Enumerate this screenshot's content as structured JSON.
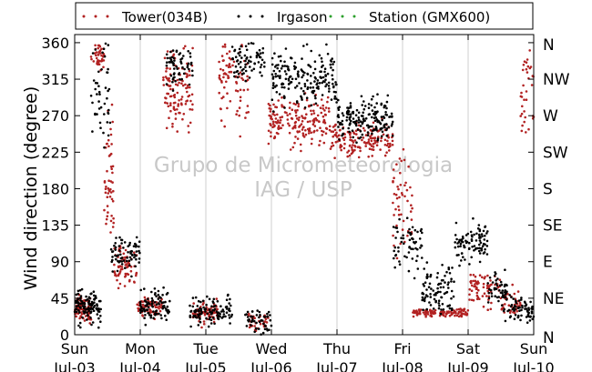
{
  "chart_data": {
    "type": "scatter",
    "ylabel": "Wind direction (degree)",
    "ylim": [
      0,
      370
    ],
    "yticks": [
      0,
      45,
      90,
      135,
      180,
      225,
      270,
      315,
      360
    ],
    "compass_labels": [
      "N",
      "NE",
      "E",
      "SE",
      "S",
      "SW",
      "W",
      "NW",
      "N"
    ],
    "xlim": [
      0,
      7
    ],
    "x_unit": "days since Sun Jul-03 00:00",
    "xticks": [
      {
        "day": "Sun",
        "date": "Jul-03"
      },
      {
        "day": "Mon",
        "date": "Jul-04"
      },
      {
        "day": "Tue",
        "date": "Jul-05"
      },
      {
        "day": "Wed",
        "date": "Jul-06"
      },
      {
        "day": "Thu",
        "date": "Jul-07"
      },
      {
        "day": "Fri",
        "date": "Jul-08"
      },
      {
        "day": "Sat",
        "date": "Jul-09"
      },
      {
        "day": "Sun",
        "date": "Jul-10"
      }
    ],
    "grid": "vertical",
    "legend_position": "top",
    "watermark": [
      "Grupo de Micrometeorologia",
      "IAG / USP"
    ],
    "series": [
      {
        "name": "Tower(034B)",
        "color": "#b22222",
        "clusters": [
          {
            "x0": 0.0,
            "x1": 0.25,
            "mean": 32,
            "spread": 14,
            "n": 90
          },
          {
            "x0": 0.25,
            "x1": 0.45,
            "mean": 345,
            "spread": 15,
            "n": 40
          },
          {
            "x0": 0.45,
            "x1": 0.6,
            "mean": 180,
            "spread": 70,
            "n": 50
          },
          {
            "x0": 0.6,
            "x1": 0.95,
            "mean": 85,
            "spread": 20,
            "n": 70
          },
          {
            "x0": 0.95,
            "x1": 1.35,
            "mean": 35,
            "spread": 12,
            "n": 70
          },
          {
            "x0": 1.35,
            "x1": 1.8,
            "mean": 300,
            "spread": 45,
            "n": 110
          },
          {
            "x0": 1.8,
            "x1": 2.2,
            "mean": 28,
            "spread": 12,
            "n": 70
          },
          {
            "x0": 2.2,
            "x1": 2.65,
            "mean": 310,
            "spread": 45,
            "n": 80
          },
          {
            "x0": 2.65,
            "x1": 2.95,
            "mean": 15,
            "spread": 10,
            "n": 40
          },
          {
            "x0": 2.95,
            "x1": 3.9,
            "mean": 265,
            "spread": 25,
            "n": 180
          },
          {
            "x0": 3.9,
            "x1": 4.85,
            "mean": 240,
            "spread": 18,
            "n": 160
          },
          {
            "x0": 4.85,
            "x1": 5.15,
            "mean": 160,
            "spread": 55,
            "n": 50
          },
          {
            "x0": 5.15,
            "x1": 6.0,
            "mean": 27,
            "spread": 4,
            "n": 110
          },
          {
            "x0": 6.0,
            "x1": 6.5,
            "mean": 55,
            "spread": 20,
            "n": 70
          },
          {
            "x0": 6.5,
            "x1": 6.8,
            "mean": 40,
            "spread": 15,
            "n": 40
          },
          {
            "x0": 6.8,
            "x1": 7.0,
            "mean": 300,
            "spread": 50,
            "n": 35
          }
        ]
      },
      {
        "name": "Irgason",
        "color": "#000000",
        "clusters": [
          {
            "x0": 0.0,
            "x1": 0.4,
            "mean": 35,
            "spread": 18,
            "n": 110
          },
          {
            "x0": 0.25,
            "x1": 0.55,
            "mean": 300,
            "spread": 55,
            "n": 45
          },
          {
            "x0": 0.55,
            "x1": 1.0,
            "mean": 100,
            "spread": 20,
            "n": 70
          },
          {
            "x0": 1.0,
            "x1": 1.45,
            "mean": 35,
            "spread": 15,
            "n": 90
          },
          {
            "x0": 1.4,
            "x1": 1.8,
            "mean": 330,
            "spread": 20,
            "n": 60
          },
          {
            "x0": 1.75,
            "x1": 2.4,
            "mean": 30,
            "spread": 15,
            "n": 110
          },
          {
            "x0": 2.4,
            "x1": 2.9,
            "mean": 340,
            "spread": 20,
            "n": 70
          },
          {
            "x0": 2.6,
            "x1": 3.0,
            "mean": 15,
            "spread": 12,
            "n": 50
          },
          {
            "x0": 3.0,
            "x1": 4.0,
            "mean": 315,
            "spread": 28,
            "n": 190
          },
          {
            "x0": 4.0,
            "x1": 4.85,
            "mean": 265,
            "spread": 22,
            "n": 170
          },
          {
            "x0": 4.85,
            "x1": 5.3,
            "mean": 110,
            "spread": 30,
            "n": 60
          },
          {
            "x0": 5.3,
            "x1": 5.8,
            "mean": 55,
            "spread": 25,
            "n": 90
          },
          {
            "x0": 5.8,
            "x1": 6.3,
            "mean": 115,
            "spread": 20,
            "n": 90
          },
          {
            "x0": 6.3,
            "x1": 6.6,
            "mean": 55,
            "spread": 18,
            "n": 50
          },
          {
            "x0": 6.55,
            "x1": 6.85,
            "mean": 30,
            "spread": 15,
            "n": 40
          },
          {
            "x0": 6.85,
            "x1": 7.0,
            "mean": 30,
            "spread": 12,
            "n": 30
          }
        ]
      },
      {
        "name": "Station (GMX600)",
        "color": "#2ca02c",
        "clusters": []
      }
    ]
  }
}
